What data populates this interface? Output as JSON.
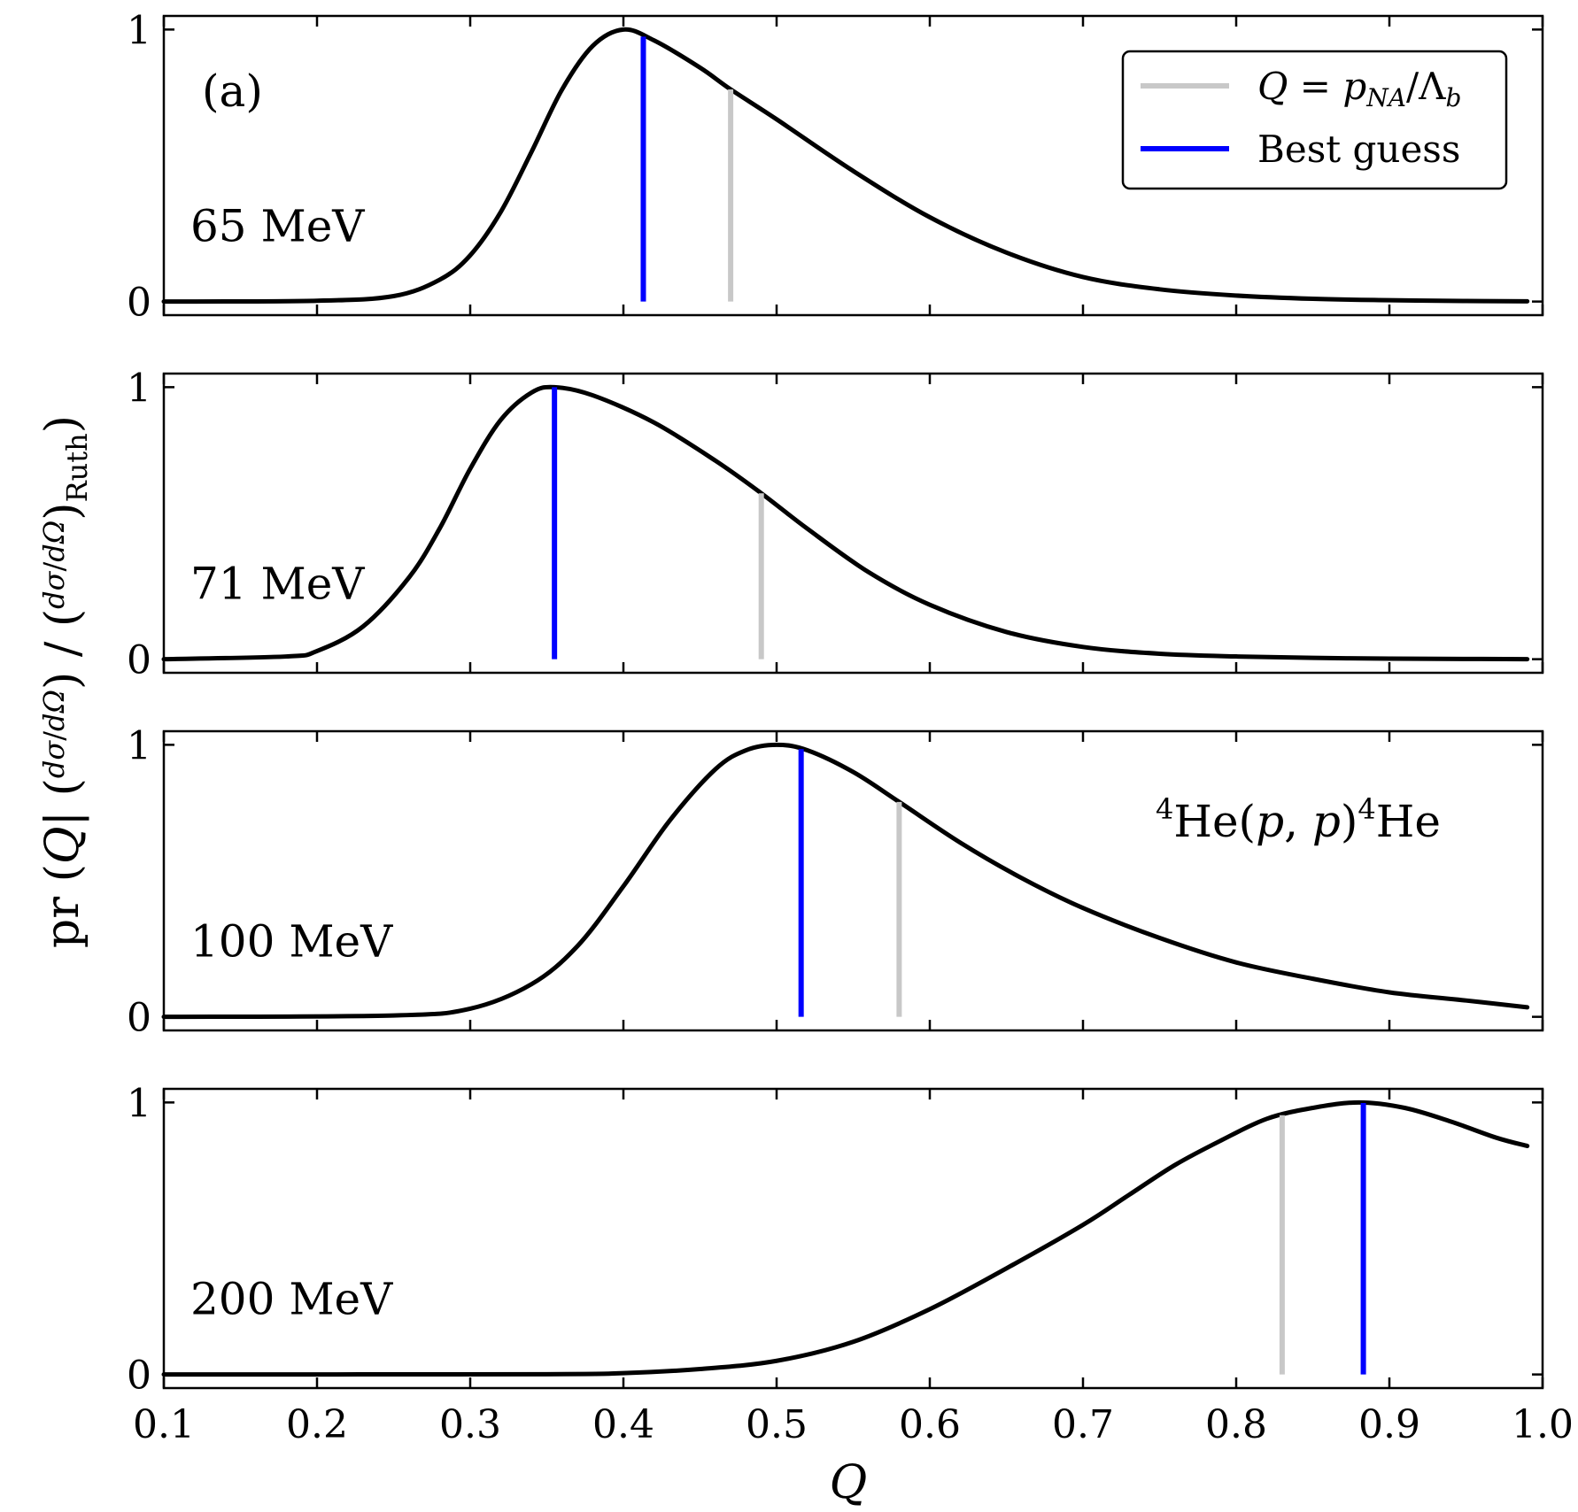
{
  "chart_data": {
    "type": "line",
    "subfigure_label": "(a)",
    "xlabel": "Q",
    "ylabel": {
      "prefix": "pr (",
      "var": "Q",
      "bar": "| (",
      "frac_num": "dσ",
      "frac_den": "dΩ",
      "mid": ") / (",
      "close": ")",
      "subscript": "Ruth",
      "end": ")"
    },
    "xlim": [
      0.1,
      1.0
    ],
    "ylim": [
      -0.05,
      1.05
    ],
    "x_ticks": [
      0.1,
      0.2,
      0.3,
      0.4,
      0.5,
      0.6,
      0.7,
      0.8,
      0.9,
      1.0
    ],
    "x_tick_labels": [
      "0.1",
      "0.2",
      "0.3",
      "0.4",
      "0.5",
      "0.6",
      "0.7",
      "0.8",
      "0.9",
      "1.0"
    ],
    "y_ticks": [
      0,
      1
    ],
    "y_tick_labels": [
      "0",
      "1"
    ],
    "legend": {
      "position": "top-right of first panel",
      "entries": [
        {
          "label": "Q = p_NA/Λ_b",
          "color": "#c8c8c8"
        },
        {
          "label": "Best guess",
          "color": "#0000ff"
        }
      ]
    },
    "reaction_annotation": {
      "pre": "4",
      "a": "He(",
      "p1": "p",
      "comma": ", ",
      "p2": "p",
      "close": ")",
      "post": "4",
      "b": "He"
    },
    "colors": {
      "curve": "#000000",
      "guess": "#0000ff",
      "ratio": "#c8c8c8"
    },
    "panels": [
      {
        "energy_label": "65 MeV",
        "ratio_line_Q": 0.47,
        "best_guess_Q": 0.413,
        "x": [
          0.1,
          0.2,
          0.25,
          0.28,
          0.3,
          0.32,
          0.34,
          0.36,
          0.38,
          0.4,
          0.42,
          0.45,
          0.47,
          0.5,
          0.55,
          0.6,
          0.65,
          0.7,
          0.75,
          0.8,
          0.85,
          0.9,
          0.95,
          0.99
        ],
        "y": [
          0.0,
          0.003,
          0.02,
          0.08,
          0.17,
          0.33,
          0.55,
          0.78,
          0.94,
          1.0,
          0.96,
          0.86,
          0.78,
          0.67,
          0.48,
          0.31,
          0.18,
          0.09,
          0.045,
          0.022,
          0.01,
          0.005,
          0.002,
          0.001
        ]
      },
      {
        "energy_label": "71 MeV",
        "ratio_line_Q": 0.49,
        "best_guess_Q": 0.355,
        "x": [
          0.1,
          0.18,
          0.2,
          0.23,
          0.26,
          0.28,
          0.3,
          0.32,
          0.34,
          0.355,
          0.38,
          0.42,
          0.46,
          0.49,
          0.52,
          0.56,
          0.6,
          0.65,
          0.7,
          0.75,
          0.8,
          0.85,
          0.9,
          0.95,
          0.99
        ],
        "y": [
          0.0,
          0.01,
          0.03,
          0.12,
          0.3,
          0.48,
          0.7,
          0.88,
          0.98,
          1.0,
          0.97,
          0.87,
          0.73,
          0.61,
          0.48,
          0.32,
          0.2,
          0.1,
          0.045,
          0.02,
          0.01,
          0.005,
          0.002,
          0.001,
          0.0
        ]
      },
      {
        "energy_label": "100 MeV",
        "ratio_line_Q": 0.58,
        "best_guess_Q": 0.516,
        "x": [
          0.1,
          0.25,
          0.3,
          0.34,
          0.37,
          0.4,
          0.43,
          0.46,
          0.48,
          0.5,
          0.52,
          0.55,
          0.58,
          0.62,
          0.66,
          0.7,
          0.75,
          0.8,
          0.85,
          0.9,
          0.95,
          0.99
        ],
        "y": [
          0.0,
          0.005,
          0.03,
          0.12,
          0.26,
          0.48,
          0.72,
          0.91,
          0.98,
          1.0,
          0.98,
          0.9,
          0.79,
          0.64,
          0.51,
          0.4,
          0.29,
          0.2,
          0.14,
          0.09,
          0.06,
          0.035
        ]
      },
      {
        "energy_label": "200 MeV",
        "ratio_line_Q": 0.83,
        "best_guess_Q": 0.883,
        "x": [
          0.1,
          0.35,
          0.4,
          0.45,
          0.5,
          0.55,
          0.6,
          0.65,
          0.7,
          0.73,
          0.76,
          0.79,
          0.82,
          0.85,
          0.88,
          0.91,
          0.94,
          0.97,
          0.99
        ],
        "y": [
          0.0,
          0.001,
          0.005,
          0.02,
          0.05,
          0.12,
          0.24,
          0.39,
          0.55,
          0.66,
          0.77,
          0.86,
          0.94,
          0.98,
          1.0,
          0.98,
          0.93,
          0.87,
          0.84
        ]
      }
    ]
  }
}
